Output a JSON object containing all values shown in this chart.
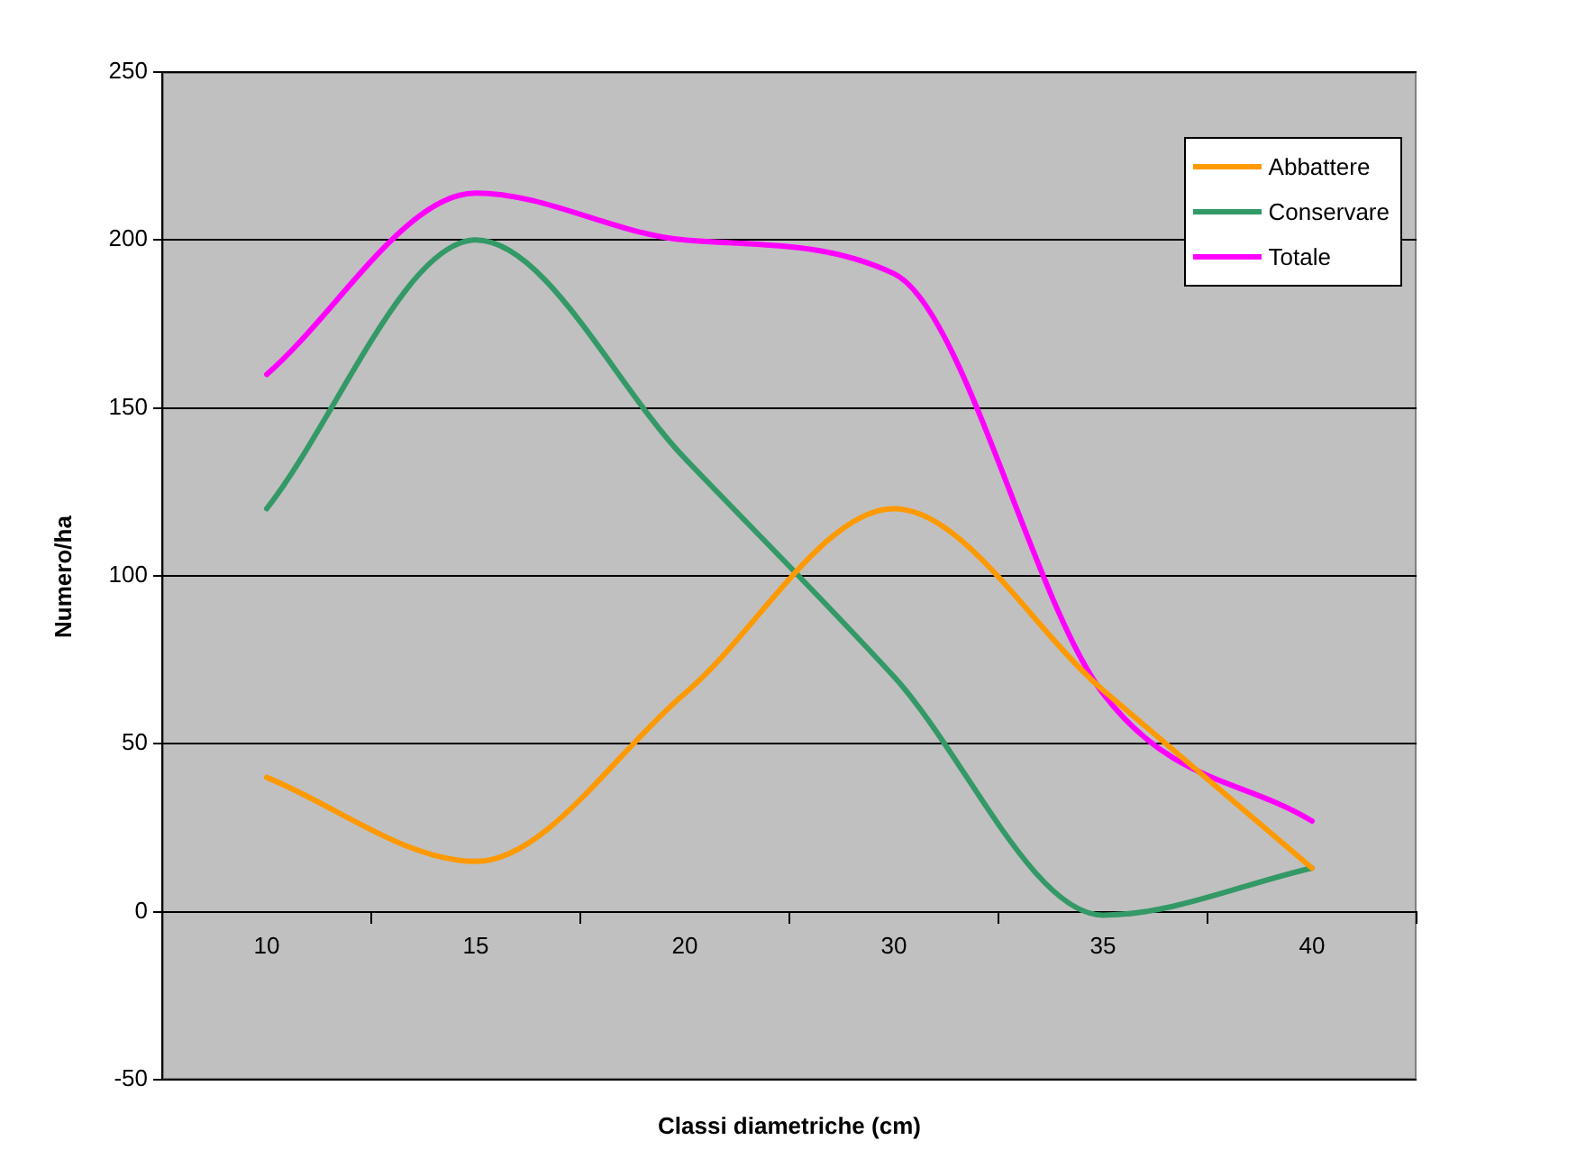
{
  "chart_data": {
    "type": "line",
    "xlabel": "Classi diametriche (cm)",
    "ylabel": "Numero/ha",
    "categories": [
      "10",
      "15",
      "20",
      "30",
      "35",
      "40"
    ],
    "series": [
      {
        "name": "Abbattere",
        "color": "#ff9900",
        "values": [
          40,
          15,
          65,
          120,
          66,
          13
        ]
      },
      {
        "name": "Conservare",
        "color": "#339966",
        "values": [
          120,
          200,
          135,
          70,
          -1,
          13
        ]
      },
      {
        "name": "Totale",
        "color": "#ff00ff",
        "values": [
          160,
          214,
          200,
          190,
          65,
          27
        ]
      }
    ],
    "ylim": [
      -50,
      250
    ],
    "yticks": [
      -50,
      0,
      50,
      100,
      150,
      200,
      250
    ],
    "grid": "y",
    "legend": "top right",
    "marker": "none",
    "line_style": "solid"
  }
}
